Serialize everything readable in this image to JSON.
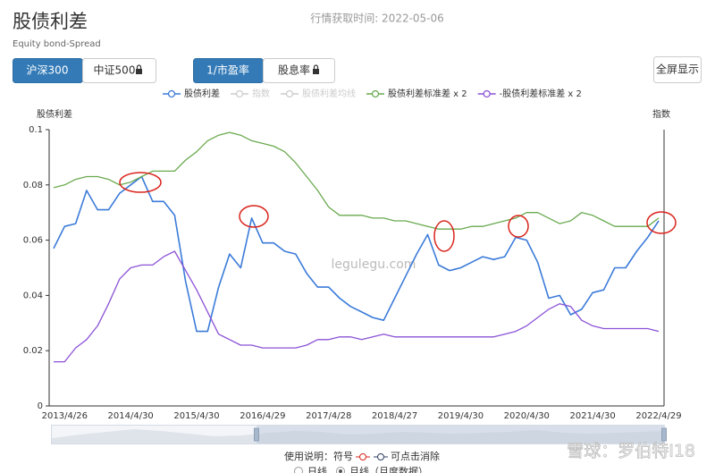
{
  "header": {
    "title": "股债利差",
    "subtitle": "Equity bond-Spread",
    "fetch_time": "行情获取时间: 2022-05-06"
  },
  "controls": {
    "index_buttons": [
      "沪深300",
      "中证500"
    ],
    "metric_buttons": [
      "1/市盈率",
      "股息率"
    ],
    "fullscreen": "全屏显示"
  },
  "chart_data": {
    "type": "line",
    "y_label": "股债利差",
    "y2_label": "指数",
    "watermark": "legulegu.com",
    "ylim": [
      0,
      0.1
    ],
    "yticks": [
      0,
      0.02,
      0.04,
      0.06,
      0.08,
      0.1
    ],
    "categories": [
      null,
      "2013/4/26",
      null,
      null,
      null,
      null,
      null,
      "2014/4/30",
      null,
      null,
      null,
      null,
      null,
      "2015/4/30",
      null,
      null,
      null,
      null,
      null,
      "2016/4/29",
      null,
      null,
      null,
      null,
      null,
      "2017/4/28",
      null,
      null,
      null,
      null,
      null,
      "2018/4/27",
      null,
      null,
      null,
      null,
      null,
      "2019/4/30",
      null,
      null,
      null,
      null,
      null,
      "2020/4/30",
      null,
      null,
      null,
      null,
      null,
      "2021/4/30",
      null,
      null,
      null,
      null,
      null,
      "2022/4/29"
    ],
    "series": [
      {
        "name": "股债利差",
        "color": "#3b7bd9",
        "values": [
          0.057,
          0.065,
          0.066,
          0.078,
          0.071,
          0.071,
          0.077,
          0.08,
          0.083,
          0.074,
          0.074,
          0.069,
          0.045,
          0.027,
          0.027,
          0.043,
          0.055,
          0.05,
          0.068,
          0.059,
          0.059,
          0.056,
          0.055,
          0.048,
          0.043,
          0.043,
          0.039,
          0.036,
          0.034,
          0.032,
          0.031,
          0.039,
          0.047,
          0.055,
          0.062,
          0.051,
          0.049,
          0.05,
          0.052,
          0.054,
          0.053,
          0.054,
          0.061,
          0.06,
          0.052,
          0.039,
          0.04,
          0.033,
          0.035,
          0.041,
          0.042,
          0.05,
          0.05,
          0.056,
          0.061,
          0.067
        ]
      },
      {
        "name": "指数",
        "color": "#cccccc",
        "visible": false
      },
      {
        "name": "股债利差均线",
        "color": "#cccccc",
        "visible": false
      },
      {
        "name": "股债利差标准差 x 2",
        "color": "#6aaa4f",
        "values": [
          0.079,
          0.08,
          0.082,
          0.083,
          0.083,
          0.082,
          0.08,
          0.081,
          0.083,
          0.085,
          0.085,
          0.085,
          0.089,
          0.092,
          0.096,
          0.098,
          0.099,
          0.098,
          0.096,
          0.095,
          0.094,
          0.092,
          0.088,
          0.083,
          0.078,
          0.072,
          0.069,
          0.069,
          0.069,
          0.068,
          0.068,
          0.067,
          0.067,
          0.066,
          0.065,
          0.064,
          0.064,
          0.064,
          0.065,
          0.065,
          0.066,
          0.067,
          0.068,
          0.07,
          0.07,
          0.068,
          0.066,
          0.067,
          0.07,
          0.069,
          0.067,
          0.065,
          0.065,
          0.065,
          0.065,
          0.068
        ]
      },
      {
        "name": "-股债利差标准差 x 2",
        "color": "#8b52d6",
        "values": [
          0.016,
          0.016,
          0.021,
          0.024,
          0.029,
          0.037,
          0.046,
          0.05,
          0.051,
          0.051,
          0.054,
          0.056,
          0.049,
          0.042,
          0.034,
          0.026,
          0.024,
          0.022,
          0.022,
          0.021,
          0.021,
          0.021,
          0.021,
          0.022,
          0.024,
          0.024,
          0.025,
          0.025,
          0.024,
          0.025,
          0.026,
          0.025,
          0.025,
          0.025,
          0.025,
          0.025,
          0.025,
          0.025,
          0.025,
          0.025,
          0.025,
          0.026,
          0.027,
          0.029,
          0.032,
          0.035,
          0.037,
          0.036,
          0.031,
          0.029,
          0.028,
          0.028,
          0.028,
          0.028,
          0.028,
          0.027
        ]
      }
    ]
  },
  "footer": {
    "hint_prefix": "使用说明：符号",
    "hint_suffix": "可点击消除",
    "options": [
      "日线",
      "月线（月度数据）"
    ]
  },
  "overlay": {
    "source_watermark": "雪球：罗伯特I18"
  }
}
